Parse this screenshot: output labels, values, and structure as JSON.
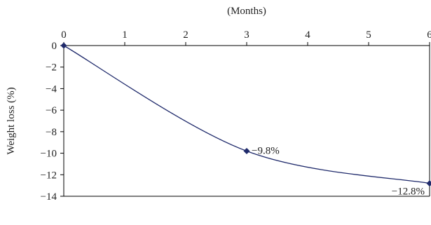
{
  "chart_data": {
    "type": "line",
    "title": "",
    "xlabel": "(Months)",
    "ylabel": "Weight loss (%)",
    "x_axis_position": "top",
    "xlim": [
      0,
      6
    ],
    "ylim": [
      -14,
      0
    ],
    "x_ticks": [
      0,
      1,
      2,
      3,
      4,
      5,
      6
    ],
    "y_ticks": [
      0,
      -2,
      -4,
      -6,
      -8,
      -10,
      -12,
      -14
    ],
    "x_tick_labels": [
      "0",
      "1",
      "2",
      "3",
      "4",
      "5",
      "6"
    ],
    "y_tick_labels": [
      "0",
      "−2",
      "−4",
      "−6",
      "−8",
      "−10",
      "−12",
      "−14"
    ],
    "grid": false,
    "legend": "none",
    "line_color": "#1f2a6b",
    "series": [
      {
        "x": [
          0,
          3,
          6
        ],
        "y": [
          0,
          -9.8,
          -12.8
        ],
        "point_labels": [
          "",
          "−9.8%",
          "−12.8%"
        ]
      }
    ]
  }
}
